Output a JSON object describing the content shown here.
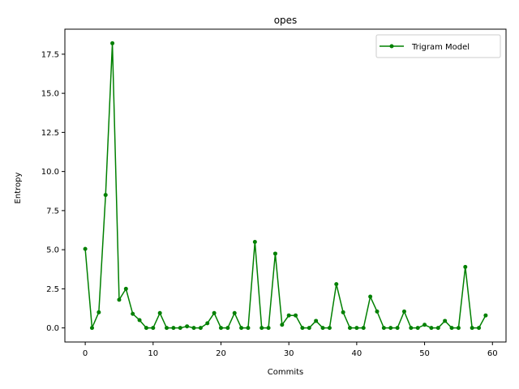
{
  "chart_data": {
    "type": "line",
    "title": "opes",
    "xlabel": "Commits",
    "ylabel": "Entropy",
    "xlim": [
      -3,
      62
    ],
    "ylim": [
      -0.9,
      19.1
    ],
    "xticks": [
      0,
      10,
      20,
      30,
      40,
      50,
      60
    ],
    "xtick_labels": [
      "0",
      "10",
      "20",
      "30",
      "40",
      "50",
      "60"
    ],
    "yticks": [
      0,
      2.5,
      5,
      7.5,
      10,
      12.5,
      15,
      17.5
    ],
    "ytick_labels": [
      "0.0",
      "2.5",
      "5.0",
      "7.5",
      "10.0",
      "12.5",
      "15.0",
      "17.5"
    ],
    "grid": false,
    "legend_position": "top-right",
    "series": [
      {
        "name": "Trigram Model",
        "color": "#008000",
        "marker": "circle",
        "x": [
          0,
          1,
          2,
          3,
          4,
          5,
          6,
          7,
          8,
          9,
          10,
          11,
          12,
          13,
          14,
          15,
          16,
          17,
          18,
          19,
          20,
          21,
          22,
          23,
          24,
          25,
          26,
          27,
          28,
          29,
          30,
          31,
          32,
          33,
          34,
          35,
          36,
          37,
          38,
          39,
          40,
          41,
          42,
          43,
          44,
          45,
          46,
          47,
          48,
          49,
          50,
          51,
          52,
          53,
          54,
          55,
          56,
          57,
          58,
          59
        ],
        "values": [
          5.05,
          0.0,
          1.0,
          8.5,
          18.2,
          1.8,
          2.5,
          0.9,
          0.5,
          0.0,
          0.0,
          0.95,
          0.0,
          0.0,
          0.0,
          0.1,
          0.0,
          0.0,
          0.3,
          0.95,
          0.0,
          0.0,
          0.95,
          0.0,
          0.0,
          5.5,
          0.0,
          0.0,
          4.75,
          0.2,
          0.8,
          0.8,
          0.0,
          0.0,
          0.45,
          0.0,
          0.0,
          2.8,
          1.0,
          0.0,
          0.0,
          0.0,
          2.0,
          1.05,
          0.0,
          0.0,
          0.0,
          1.05,
          0.0,
          0.0,
          0.2,
          0.0,
          0.0,
          0.45,
          0.0,
          0.0,
          3.9,
          0.0,
          0.0,
          0.8
        ]
      }
    ]
  }
}
